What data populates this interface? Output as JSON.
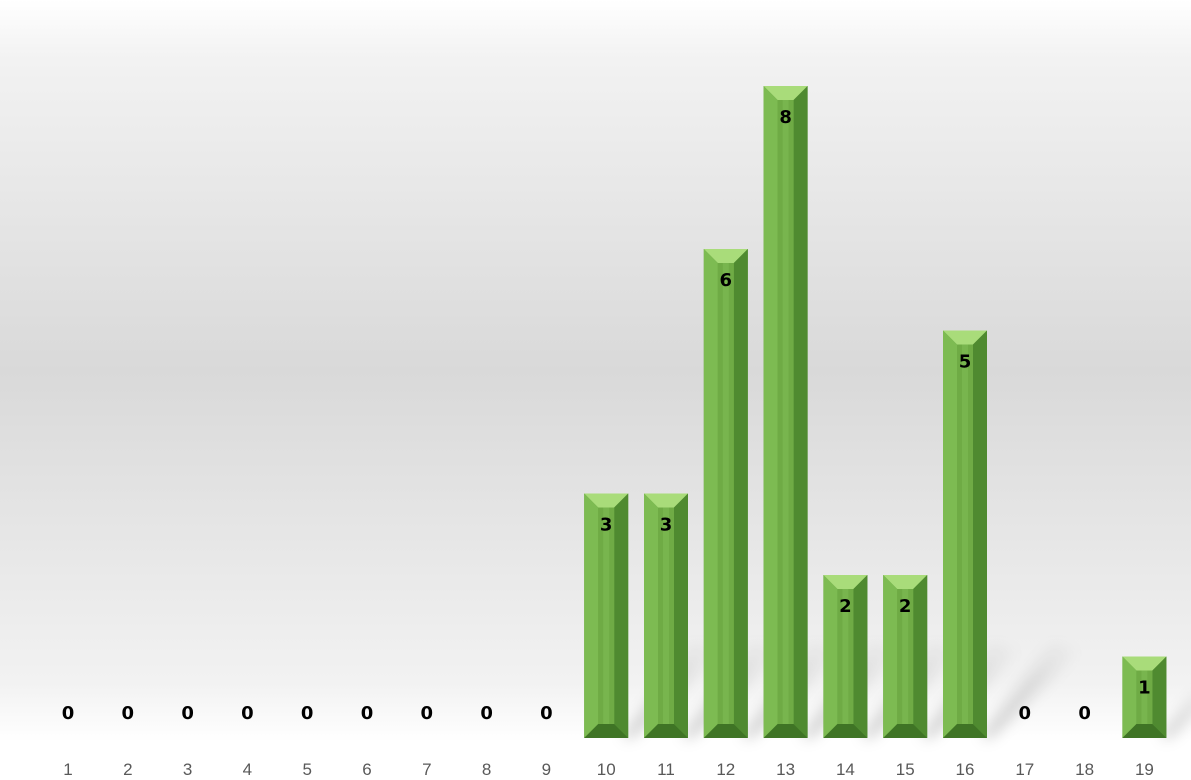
{
  "chart_data": {
    "type": "bar",
    "title": "",
    "xlabel": "",
    "ylabel": "",
    "categories": [
      "1",
      "2",
      "3",
      "4",
      "5",
      "6",
      "7",
      "8",
      "9",
      "10",
      "11",
      "12",
      "13",
      "14",
      "15",
      "16",
      "17",
      "18",
      "19"
    ],
    "values": [
      0,
      0,
      0,
      0,
      0,
      0,
      0,
      0,
      0,
      3,
      3,
      6,
      8,
      2,
      2,
      5,
      0,
      0,
      1
    ],
    "ylim": [
      0,
      8
    ],
    "grid": false,
    "legend": "none",
    "data_labels": true,
    "bar_color": "#70AD47",
    "background": "#ffffff"
  }
}
